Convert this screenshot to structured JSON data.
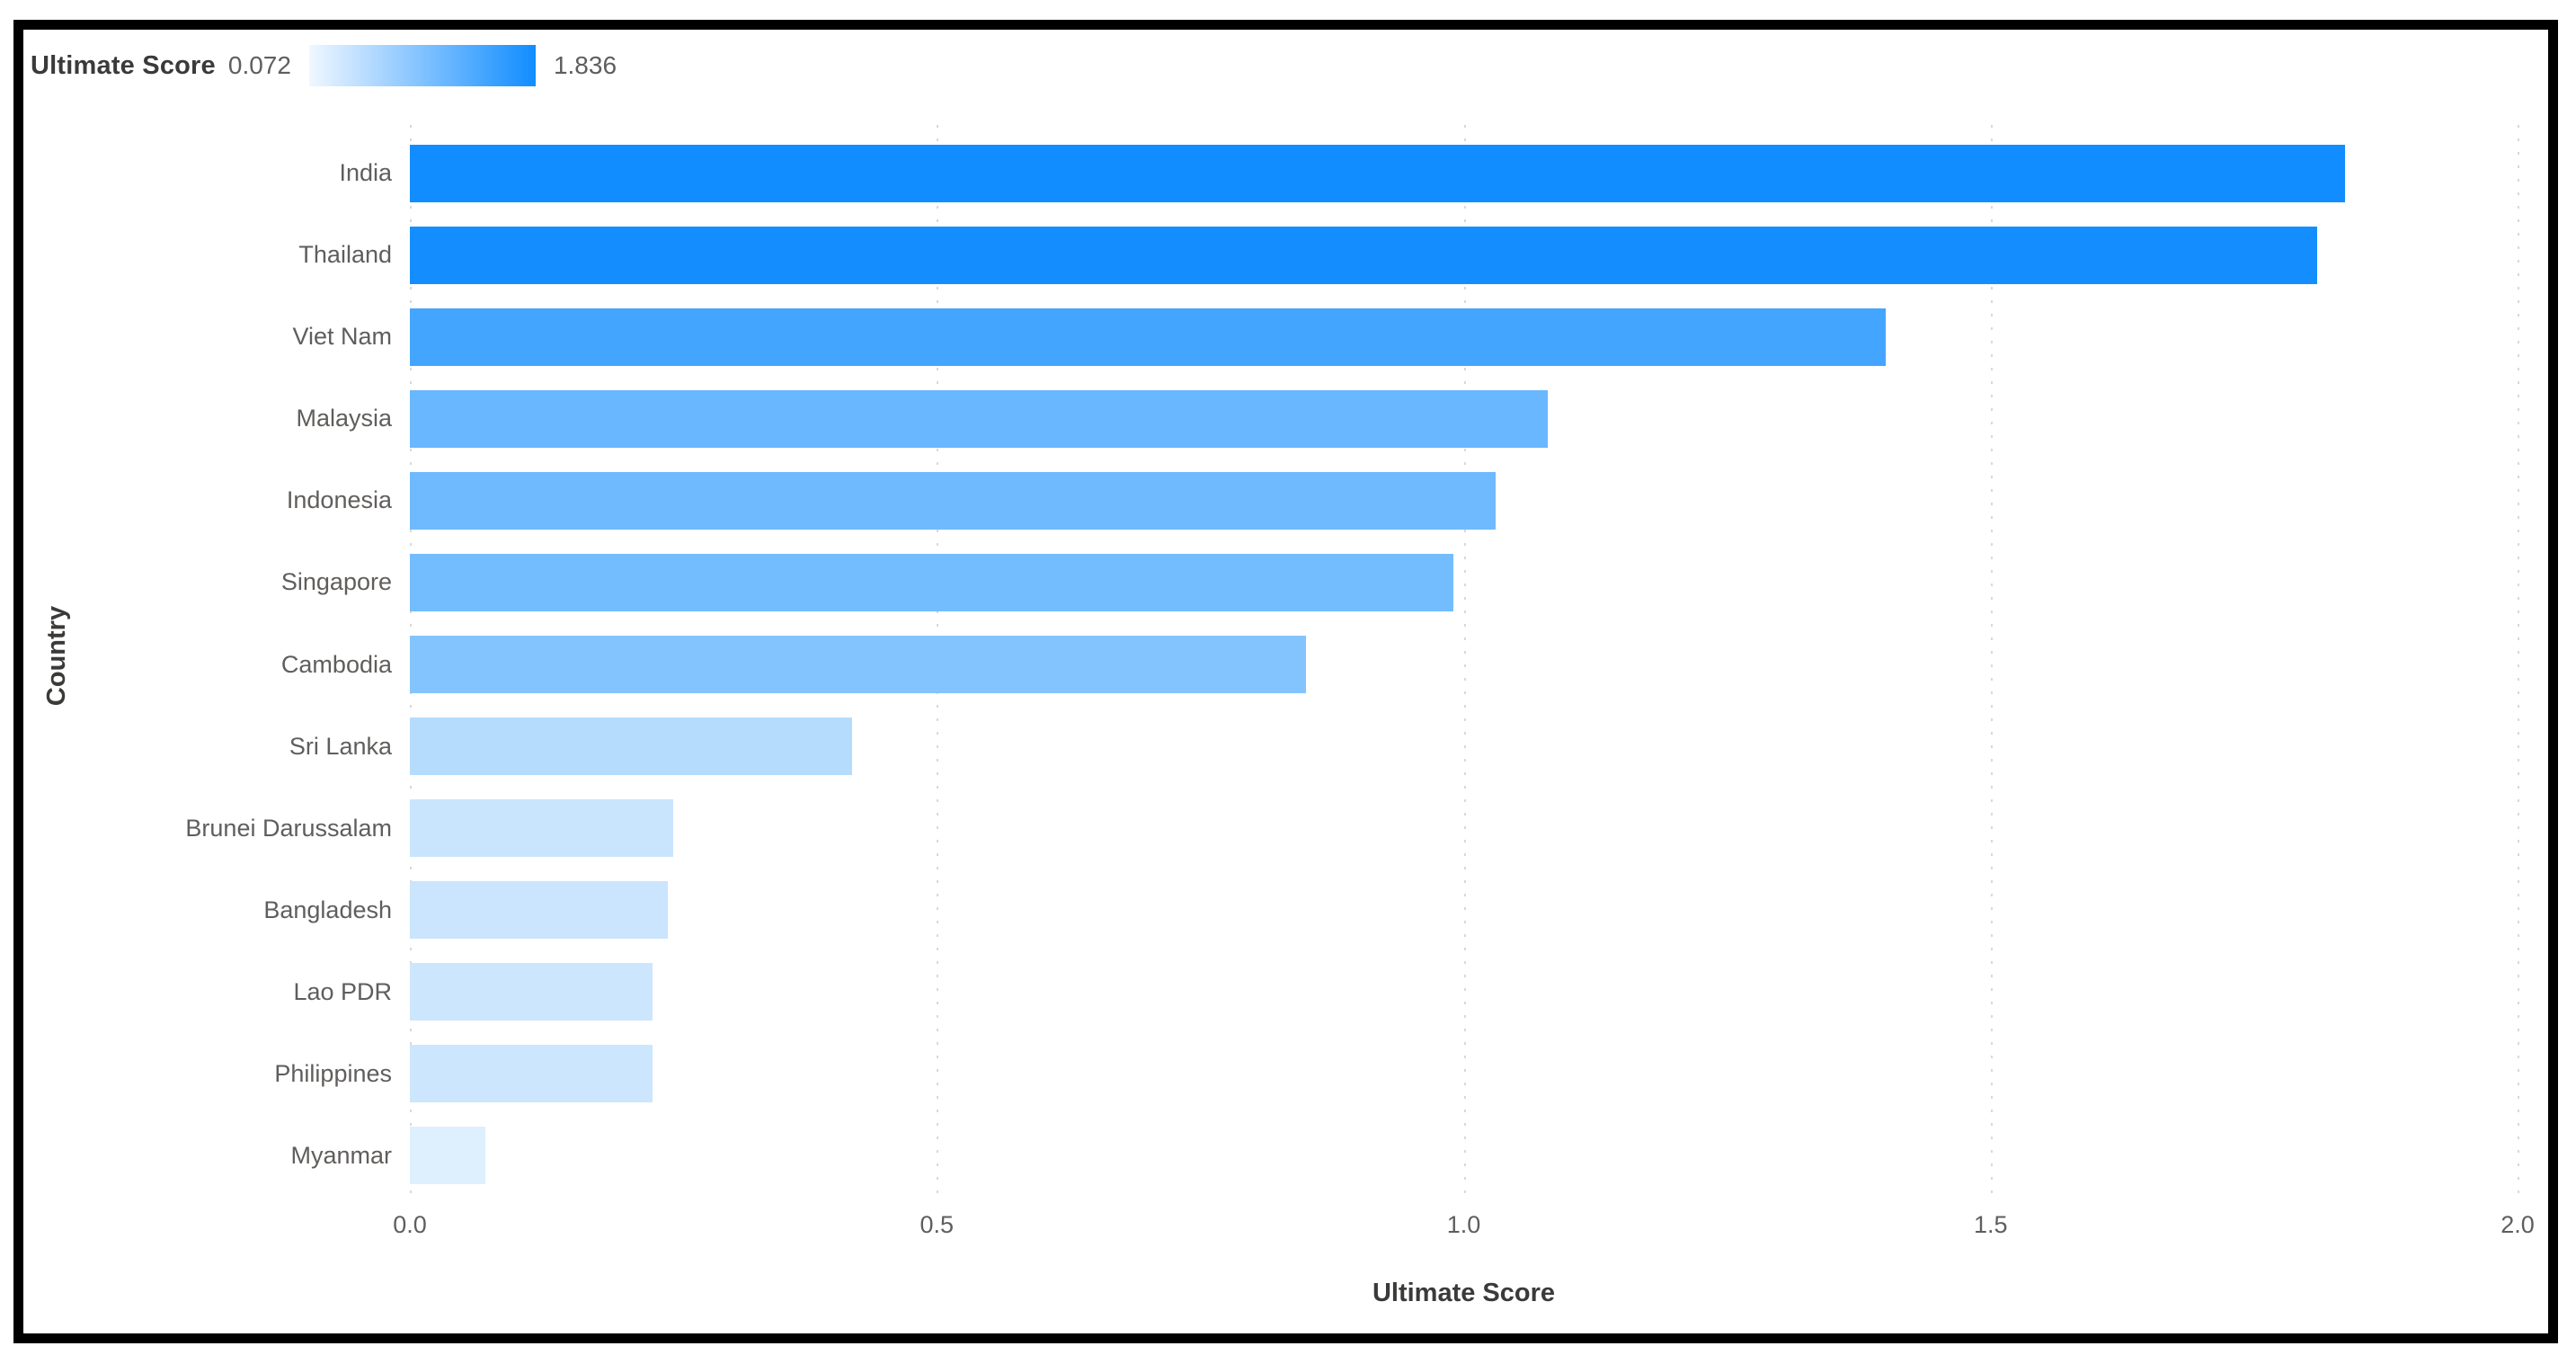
{
  "legend": {
    "title": "Ultimate Score",
    "min_label": "0.072",
    "max_label": "1.836"
  },
  "colors": {
    "bar_min": "#DEEFFD",
    "bar_max": "#118DFF",
    "legend_gradient_start": "#F0F7FF",
    "legend_gradient_end": "#118DFF",
    "gridline": "#D9D9D9",
    "label_text": "#605E5C",
    "title_text": "#3B3A39",
    "frame_border": "#000000"
  },
  "chart_data": {
    "type": "bar",
    "orientation": "horizontal",
    "title": "",
    "xlabel": "Ultimate Score",
    "ylabel": "Country",
    "categories": [
      "India",
      "Thailand",
      "Viet Nam",
      "Malaysia",
      "Indonesia",
      "Singapore",
      "Cambodia",
      "Sri Lanka",
      "Brunei Darussalam",
      "Bangladesh",
      "Lao PDR",
      "Philippines",
      "Myanmar"
    ],
    "series": [
      {
        "name": "Ultimate Score",
        "values": [
          1.836,
          1.81,
          1.4,
          1.08,
          1.03,
          0.99,
          0.85,
          0.42,
          0.25,
          0.245,
          0.23,
          0.23,
          0.072
        ]
      }
    ],
    "color_scale": {
      "min_value": 0.072,
      "max_value": 1.836
    },
    "xlim": [
      0,
      2.0
    ],
    "x_ticks": [
      "0.0",
      "0.5",
      "1.0",
      "1.5",
      "2.0"
    ],
    "x_tick_values": [
      0,
      0.5,
      1.0,
      1.5,
      2.0
    ],
    "grid": "vertical-dotted",
    "legend_position": "top-left"
  }
}
